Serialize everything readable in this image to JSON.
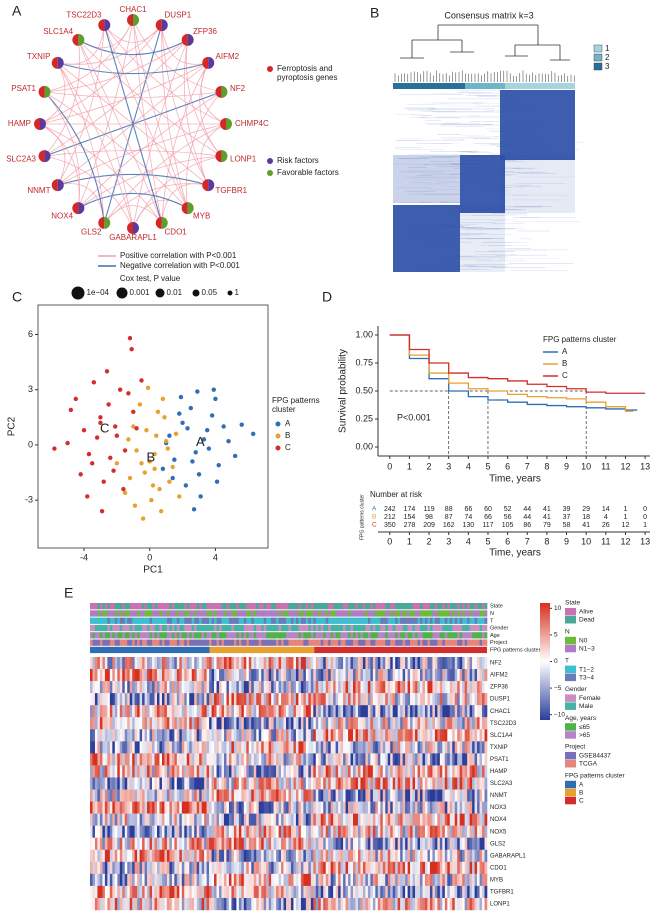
{
  "network": {
    "panel_label": "A",
    "nodes": [
      {
        "label": "CHAC1",
        "color": "#5aa02c"
      },
      {
        "label": "DUSP1",
        "color": "#5b3a9c"
      },
      {
        "label": "ZFP36",
        "color": "#5b3a9c"
      },
      {
        "label": "AIFM2",
        "color": "#5b3a9c"
      },
      {
        "label": "NF2",
        "color": "#5aa02c"
      },
      {
        "label": "CHMP4C",
        "color": "#5aa02c"
      },
      {
        "label": "LONP1",
        "color": "#5aa02c"
      },
      {
        "label": "TGFBR1",
        "color": "#5b3a9c"
      },
      {
        "label": "MYB",
        "color": "#5aa02c"
      },
      {
        "label": "CDO1",
        "color": "#5aa02c"
      },
      {
        "label": "GABARAPL1",
        "color": "#5b3a9c"
      },
      {
        "label": "GLS2",
        "color": "#5aa02c"
      },
      {
        "label": "NOX4",
        "color": "#5b3a9c"
      },
      {
        "label": "NNMT",
        "color": "#5b3a9c"
      },
      {
        "label": "SLC2A3",
        "color": "#5b3a9c"
      },
      {
        "label": "HAMP",
        "color": "#5b3a9c"
      },
      {
        "label": "PSAT1",
        "color": "#5aa02c"
      },
      {
        "label": "TXNIP",
        "color": "#5b3a9c"
      },
      {
        "label": "SLC1A4",
        "color": "#5aa02c"
      },
      {
        "label": "TSC22D3",
        "color": "#5b3a9c"
      }
    ],
    "legend": [
      {
        "label": "Ferroptosis and pyroptosis genes",
        "color": "#d62728"
      },
      {
        "label": "Risk factors",
        "color": "#5b3a9c"
      },
      {
        "label": "Favorable factors",
        "color": "#5aa02c"
      }
    ],
    "edge_legend": [
      {
        "label": "Positive correlation with P<0.001",
        "color": "#f2a3ab"
      },
      {
        "label": "Negative correlation with P<0.001",
        "color": "#3d6fb0"
      }
    ],
    "size_legend_title": "Cox test, P value",
    "size_legend": [
      "1e−04",
      "0.001",
      "0.01",
      "0.05",
      "1"
    ]
  },
  "consensus": {
    "panel_label": "B",
    "title": "Consensus matrix k=3",
    "legend": [
      {
        "label": "1",
        "color": "#a6d5e0"
      },
      {
        "label": "2",
        "color": "#6fb5c9"
      },
      {
        "label": "3",
        "color": "#2a6f97"
      }
    ]
  },
  "chart_data": [
    {
      "type": "scatter",
      "panel_label": "C",
      "xlabel": "PC1",
      "ylabel": "PC2",
      "xlim": [
        -6.8,
        7.2
      ],
      "ylim": [
        -5.6,
        7.6
      ],
      "xticks": [
        -4,
        0,
        4
      ],
      "yticks": [
        -3,
        0,
        3,
        6
      ],
      "legend_title": "FPG patterns cluster",
      "series": [
        {
          "name": "A",
          "color": "#2f6db5",
          "x": [
            1.2,
            2.0,
            2.8,
            3.5,
            4.2,
            1.5,
            2.5,
            3.0,
            3.8,
            4.8,
            1.8,
            2.2,
            3.3,
            4.0,
            5.2,
            1.0,
            2.6,
            3.6,
            4.5,
            2.9,
            1.4,
            3.1,
            2.3,
            4.1,
            5.6,
            0.8,
            3.9,
            2.7,
            1.9,
            6.3
          ],
          "y": [
            0.5,
            1.2,
            -0.4,
            0.8,
            -1.1,
            -0.8,
            2.0,
            -1.6,
            1.6,
            0.2,
            1.7,
            -2.2,
            0.3,
            2.5,
            -0.6,
            0.1,
            -0.9,
            -0.2,
            1.0,
            2.9,
            -1.8,
            -2.8,
            0.9,
            -2.0,
            1.1,
            -1.3,
            3.0,
            -3.5,
            2.6,
            0.6
          ]
        },
        {
          "name": "B",
          "color": "#e8a030",
          "x": [
            -0.5,
            0.3,
            1.0,
            -1.2,
            0.6,
            -0.2,
            1.4,
            -0.8,
            0.1,
            0.9,
            -1.5,
            0.4,
            -0.3,
            1.2,
            -1.0,
            0.7,
            0.0,
            -0.6,
            1.6,
            -2.0,
            0.2,
            0.8,
            -0.9,
            1.1,
            -0.4,
            0.5,
            -1.3,
            0.3,
            1.8,
            -0.1
          ],
          "y": [
            -1.0,
            -0.5,
            0.2,
            -1.8,
            -2.4,
            0.8,
            -1.2,
            -0.3,
            -3.0,
            1.5,
            -2.6,
            0.5,
            -1.5,
            -2.0,
            1.0,
            -3.6,
            -0.9,
            2.2,
            0.6,
            -1.0,
            -2.2,
            2.5,
            -3.3,
            -0.2,
            -4.0,
            1.8,
            0.3,
            -1.3,
            -2.8,
            3.1
          ]
        },
        {
          "name": "C",
          "color": "#d42d2d",
          "x": [
            -2.0,
            -3.0,
            -1.5,
            -4.0,
            -2.5,
            -3.5,
            -1.0,
            -5.0,
            -2.8,
            -1.8,
            -4.5,
            -3.2,
            -2.2,
            -0.8,
            -5.8,
            -3.8,
            -1.3,
            -2.6,
            -4.2,
            -3.0,
            -1.6,
            -2.4,
            -4.8,
            -3.4,
            -0.5,
            -2.9,
            -1.1,
            -3.7,
            -2.1,
            -1.2
          ],
          "y": [
            0.5,
            1.2,
            -0.3,
            0.8,
            2.2,
            -1.0,
            1.8,
            0.1,
            -2.0,
            3.0,
            2.5,
            0.4,
            -1.4,
            0.9,
            -0.2,
            -2.8,
            2.8,
            4.0,
            -1.6,
            1.5,
            -2.4,
            -0.7,
            1.9,
            3.4,
            3.5,
            -3.6,
            5.2,
            -0.5,
            1.0,
            5.8
          ]
        }
      ]
    },
    {
      "type": "line",
      "panel_label": "D",
      "ylabel": "Survival probability",
      "xlabel": "Time, years",
      "xlim": [
        -0.6,
        13.25
      ],
      "ylim": [
        -0.08,
        1.08
      ],
      "xticks": [
        0,
        1,
        2,
        3,
        4,
        5,
        6,
        7,
        8,
        9,
        10,
        11,
        12,
        13
      ],
      "yticks": [
        {
          "value": 0,
          "label": "0.00"
        },
        {
          "value": 0.25,
          "label": "0.25"
        },
        {
          "value": 0.5,
          "label": "0.50"
        },
        {
          "value": 0.75,
          "label": "0.75"
        },
        {
          "value": 1,
          "label": "1.00"
        }
      ],
      "legend_title": "FPG patterns cluster",
      "pvalue": "P<0.001",
      "risk_table_title": "Number at risk",
      "risk_table_ylabel": "FPG patterns cluster",
      "series": [
        {
          "name": "A",
          "color": "#2f6db5",
          "x": [
            0,
            1,
            2,
            3,
            4,
            5,
            6,
            7,
            8,
            9,
            10,
            11,
            12,
            12.6
          ],
          "values": [
            1,
            0.79,
            0.61,
            0.5,
            0.45,
            0.42,
            0.4,
            0.38,
            0.37,
            0.36,
            0.35,
            0.34,
            0.33,
            0.33
          ],
          "at_risk": [
            242,
            174,
            119,
            88,
            66,
            60,
            52,
            44,
            41,
            39,
            29,
            14,
            1,
            0
          ]
        },
        {
          "name": "B",
          "color": "#e8a030",
          "x": [
            0,
            1,
            2,
            3,
            4,
            5,
            6,
            7,
            8,
            9,
            10,
            11,
            12,
            12.4
          ],
          "values": [
            1,
            0.82,
            0.66,
            0.57,
            0.52,
            0.5,
            0.47,
            0.45,
            0.44,
            0.43,
            0.4,
            0.36,
            0.32,
            0.32
          ],
          "at_risk": [
            212,
            154,
            98,
            87,
            74,
            66,
            56,
            44,
            41,
            37,
            18,
            4,
            1,
            0
          ]
        },
        {
          "name": "C",
          "color": "#d42d2d",
          "x": [
            0,
            1,
            2,
            3,
            4,
            5,
            6,
            7,
            8,
            9,
            10,
            11,
            12,
            13
          ],
          "values": [
            1,
            0.87,
            0.75,
            0.66,
            0.62,
            0.61,
            0.59,
            0.56,
            0.54,
            0.52,
            0.49,
            0.48,
            0.48,
            0.48
          ],
          "at_risk": [
            350,
            278,
            209,
            162,
            130,
            117,
            105,
            86,
            79,
            58,
            41,
            26,
            12,
            1
          ]
        }
      ]
    }
  ],
  "heatmap": {
    "panel_label": "E",
    "tracks": [
      "State",
      "N",
      "T",
      "Gender",
      "Age",
      "Project",
      "FPG patterns cluster"
    ],
    "genes": [
      "NF2",
      "AIFM2",
      "ZFP36",
      "DUSP1",
      "CHAC1",
      "TSC22D3",
      "SLC1A4",
      "TXNIP",
      "PSAT1",
      "HAMP",
      "SLC2A3",
      "NNMT",
      "NOX3",
      "NOX4",
      "NOX5",
      "GLS2",
      "GABARAPL1",
      "CDO1",
      "MYB",
      "TGFBR1",
      "LONP1"
    ],
    "colorbar_lim": [
      -11,
      11
    ],
    "colorbar_ticks": [
      10,
      5,
      0,
      {
        "value": -5,
        "label": "−5"
      },
      {
        "value": -10,
        "label": "−10"
      }
    ],
    "legends": [
      {
        "title": "State",
        "items": [
          {
            "label": "Alive",
            "color": "#c971b3"
          },
          {
            "label": "Dead",
            "color": "#4aa896"
          }
        ]
      },
      {
        "title": "N",
        "items": [
          {
            "label": "N0",
            "color": "#6eba3c"
          },
          {
            "label": "N1−3",
            "color": "#b07cc6"
          }
        ]
      },
      {
        "title": "T",
        "items": [
          {
            "label": "T1−2",
            "color": "#3dbfd0"
          },
          {
            "label": "T3−4",
            "color": "#6a7bb8"
          }
        ]
      },
      {
        "title": "Gender",
        "items": [
          {
            "label": "Female",
            "color": "#c98fc2"
          },
          {
            "label": "Male",
            "color": "#46b3a6"
          }
        ]
      },
      {
        "title": "Age, years",
        "items": [
          {
            "label": "≤65",
            "color": "#4fb34a"
          },
          {
            "label": ">65",
            "color": "#b784c9"
          }
        ]
      },
      {
        "title": "Project",
        "items": [
          {
            "label": "GSE84437",
            "color": "#7b6fb6"
          },
          {
            "label": "TCGA",
            "color": "#e4857e"
          }
        ]
      },
      {
        "title": "FPG patterns cluster",
        "items": [
          {
            "label": "A",
            "color": "#2f6db5"
          },
          {
            "label": "B",
            "color": "#e8a030"
          },
          {
            "label": "C",
            "color": "#d42d2d"
          }
        ]
      }
    ]
  }
}
